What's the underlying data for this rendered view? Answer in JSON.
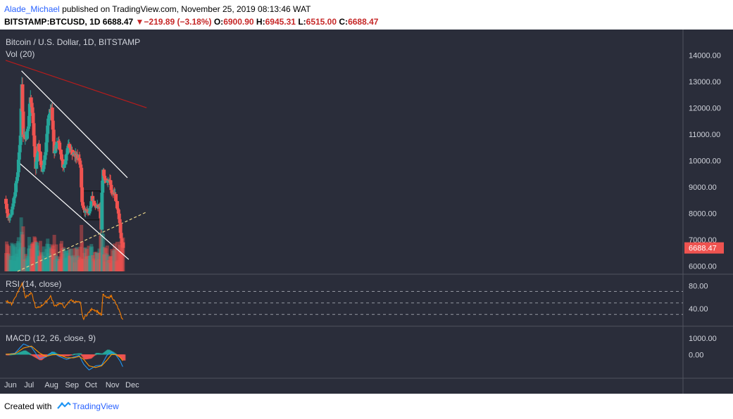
{
  "header": {
    "author": "Alade_Michael",
    "published_text": "published on TradingView.com, November 25, 2019 08:13:46 WAT",
    "symbol_line": "BITSTAMP:BTCUSD, 1D",
    "last_price": "6688.47",
    "change_arrow": "▼",
    "change": "−219.89 (−3.18%)",
    "ohlc": {
      "o_label": "O:",
      "o": "6900.90",
      "h_label": "H:",
      "h": "6945.31",
      "l_label": "L:",
      "l": "6515.00",
      "c_label": "C:",
      "c": "6688.47"
    }
  },
  "footer": {
    "created_with": "Created with",
    "brand": "TradingView",
    "logo_icon": "tradingview-logo-icon"
  },
  "colors": {
    "background": "#2a2d3a",
    "up": "#26a69a",
    "down": "#ef5350",
    "channel": "#ffffff",
    "resistance": "#b71c1c",
    "support": "#e8d58a",
    "rsi": "#f57c00",
    "macd": "#2196f3",
    "signal": "#ff9800"
  },
  "chart_data": [
    {
      "type": "candlestick",
      "title": "Bitcoin / U.S. Dollar, 1D, BITSTAMP",
      "volume_label": "Vol (20)",
      "price_tag": "6688.47",
      "ylim": [
        5800,
        14700
      ],
      "y_ticks": [
        "14000.00",
        "13000.00",
        "12000.00",
        "11000.00",
        "10000.00",
        "9000.00",
        "8000.00",
        "7000.00",
        "6000.00"
      ],
      "x_ticks": [
        "Jun",
        "Jul",
        "Aug",
        "Sep",
        "Oct",
        "Nov",
        "Dec"
      ],
      "series_anchors": [
        [
          "2019-06-01",
          8550
        ],
        [
          "2019-06-05",
          7800
        ],
        [
          "2019-06-10",
          8000
        ],
        [
          "2019-06-15",
          8700
        ],
        [
          "2019-06-20",
          9600
        ],
        [
          "2019-06-24",
          11000
        ],
        [
          "2019-06-26",
          12900
        ],
        [
          "2019-06-28",
          11000
        ],
        [
          "2019-07-02",
          10800
        ],
        [
          "2019-07-06",
          11300
        ],
        [
          "2019-07-09",
          12500
        ],
        [
          "2019-07-12",
          11800
        ],
        [
          "2019-07-17",
          9700
        ],
        [
          "2019-07-21",
          10600
        ],
        [
          "2019-07-27",
          9500
        ],
        [
          "2019-08-01",
          10400
        ],
        [
          "2019-08-06",
          11800
        ],
        [
          "2019-08-10",
          11900
        ],
        [
          "2019-08-14",
          10300
        ],
        [
          "2019-08-20",
          10800
        ],
        [
          "2019-08-28",
          9700
        ],
        [
          "2019-09-04",
          10600
        ],
        [
          "2019-09-12",
          10200
        ],
        [
          "2019-09-21",
          10100
        ],
        [
          "2019-09-23",
          9700
        ],
        [
          "2019-09-25",
          8400
        ],
        [
          "2019-09-29",
          8100
        ],
        [
          "2019-10-06",
          8000
        ],
        [
          "2019-10-10",
          8600
        ],
        [
          "2019-10-15",
          8300
        ],
        [
          "2019-10-22",
          8200
        ],
        [
          "2019-10-24",
          7400
        ],
        [
          "2019-10-25",
          8700
        ],
        [
          "2019-10-27",
          9600
        ],
        [
          "2019-10-31",
          9200
        ],
        [
          "2019-11-06",
          9300
        ],
        [
          "2019-11-08",
          8800
        ],
        [
          "2019-11-14",
          8700
        ],
        [
          "2019-11-18",
          8100
        ],
        [
          "2019-11-21",
          7600
        ],
        [
          "2019-11-22",
          7200
        ],
        [
          "2019-11-25",
          6688
        ]
      ],
      "last_bar": {
        "date": "2019-11-25",
        "o": 6900.9,
        "h": 6945.31,
        "l": 6515.0,
        "c": 6688.47
      },
      "trendlines": [
        {
          "name": "descending-channel-upper",
          "from": [
            "2019-06-25",
            13400
          ],
          "to": [
            "2019-12-02",
            9350
          ]
        },
        {
          "name": "descending-channel-lower",
          "from": [
            "2019-06-22",
            9900
          ],
          "to": [
            "2019-12-04",
            6250
          ]
        },
        {
          "name": "long-term-resistance",
          "from": [
            "2019-06-01",
            13800
          ],
          "to": [
            "2019-12-31",
            12000
          ]
        },
        {
          "name": "ascending-support-dashed",
          "from": [
            "2019-06-19",
            5800
          ],
          "to": [
            "2019-12-31",
            8050
          ]
        }
      ],
      "range_box": {
        "from": [
          "2019-09-25",
          8850
        ],
        "to": [
          "2019-10-22",
          7750
        ]
      }
    },
    {
      "type": "line",
      "title": "RSI (14, close)",
      "ylim": [
        12,
        95
      ],
      "y_ticks": [
        "80.00",
        "40.00"
      ],
      "levels": [
        70,
        50,
        30
      ],
      "series_anchors": [
        [
          "2019-06-01",
          55
        ],
        [
          "2019-06-10",
          48
        ],
        [
          "2019-06-20",
          70
        ],
        [
          "2019-06-26",
          85
        ],
        [
          "2019-07-01",
          60
        ],
        [
          "2019-07-10",
          67
        ],
        [
          "2019-07-17",
          40
        ],
        [
          "2019-07-25",
          45
        ],
        [
          "2019-08-01",
          52
        ],
        [
          "2019-08-08",
          62
        ],
        [
          "2019-08-14",
          44
        ],
        [
          "2019-08-22",
          50
        ],
        [
          "2019-08-30",
          42
        ],
        [
          "2019-09-06",
          55
        ],
        [
          "2019-09-14",
          52
        ],
        [
          "2019-09-22",
          50
        ],
        [
          "2019-09-26",
          22
        ],
        [
          "2019-10-02",
          30
        ],
        [
          "2019-10-10",
          40
        ],
        [
          "2019-10-18",
          35
        ],
        [
          "2019-10-24",
          28
        ],
        [
          "2019-10-26",
          65
        ],
        [
          "2019-11-01",
          58
        ],
        [
          "2019-11-08",
          62
        ],
        [
          "2019-11-14",
          50
        ],
        [
          "2019-11-19",
          38
        ],
        [
          "2019-11-22",
          28
        ],
        [
          "2019-11-25",
          20
        ]
      ]
    },
    {
      "type": "line",
      "title": "MACD (12, 26, close, 9)",
      "ylim": [
        -1200,
        1700
      ],
      "y_ticks": [
        "1000.00",
        "0.00"
      ],
      "series": [
        {
          "name": "MACD",
          "anchors": [
            [
              "2019-06-01",
              0
            ],
            [
              "2019-06-15",
              80
            ],
            [
              "2019-06-28",
              650
            ],
            [
              "2019-07-10",
              450
            ],
            [
              "2019-07-22",
              -250
            ],
            [
              "2019-08-01",
              -150
            ],
            [
              "2019-08-10",
              150
            ],
            [
              "2019-08-20",
              -100
            ],
            [
              "2019-09-01",
              -300
            ],
            [
              "2019-09-12",
              -150
            ],
            [
              "2019-09-20",
              -50
            ],
            [
              "2019-09-27",
              -600
            ],
            [
              "2019-10-05",
              -950
            ],
            [
              "2019-10-15",
              -700
            ],
            [
              "2019-10-24",
              -650
            ],
            [
              "2019-11-01",
              -50
            ],
            [
              "2019-11-08",
              150
            ],
            [
              "2019-11-15",
              -50
            ],
            [
              "2019-11-21",
              -400
            ],
            [
              "2019-11-25",
              -750
            ]
          ]
        },
        {
          "name": "Signal",
          "anchors": [
            [
              "2019-06-01",
              20
            ],
            [
              "2019-06-15",
              40
            ],
            [
              "2019-06-28",
              400
            ],
            [
              "2019-07-10",
              520
            ],
            [
              "2019-07-22",
              100
            ],
            [
              "2019-08-01",
              -120
            ],
            [
              "2019-08-10",
              -20
            ],
            [
              "2019-08-20",
              0
            ],
            [
              "2019-09-01",
              -200
            ],
            [
              "2019-09-12",
              -200
            ],
            [
              "2019-09-20",
              -120
            ],
            [
              "2019-09-27",
              -300
            ],
            [
              "2019-10-05",
              -700
            ],
            [
              "2019-10-15",
              -800
            ],
            [
              "2019-10-24",
              -700
            ],
            [
              "2019-11-01",
              -350
            ],
            [
              "2019-11-08",
              0
            ],
            [
              "2019-11-15",
              0
            ],
            [
              "2019-11-21",
              -180
            ],
            [
              "2019-11-25",
              -380
            ]
          ]
        }
      ]
    }
  ]
}
